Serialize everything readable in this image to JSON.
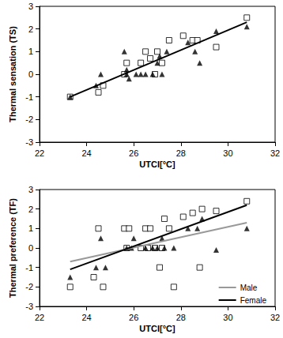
{
  "chart_data": [
    {
      "type": "scatter",
      "title": "",
      "x_label": "UTCI[°C]",
      "y_label": "Thermal sensation (TS)",
      "xlim": [
        22,
        32
      ],
      "xticks": [
        22,
        24,
        26,
        28,
        30,
        32
      ],
      "ylim": [
        -3,
        3
      ],
      "yticks": [
        -3,
        -2,
        -1,
        0,
        1,
        2,
        3
      ],
      "grid": false,
      "series": [
        {
          "type": "scatter",
          "marker": "open_square",
          "color": "#000000",
          "x": [
            23.3,
            24.5,
            24.7,
            25.6,
            25.7,
            26.3,
            26.5,
            26.7,
            26.9,
            27.0,
            27.2,
            27.5,
            28.1,
            28.5,
            28.7,
            29.5,
            30.8
          ],
          "values": [
            -1,
            -0.8,
            -0.5,
            0,
            0.5,
            0.5,
            1,
            0.7,
            0,
            1,
            0.5,
            1.5,
            1.7,
            1.5,
            1.5,
            1.2,
            2.5
          ]
        },
        {
          "type": "scatter",
          "marker": "triangle",
          "color": "#000000",
          "x": [
            23.3,
            24.4,
            24.6,
            25.6,
            25.7,
            25.7,
            25.8,
            26.1,
            26.3,
            26.5,
            26.8,
            27.0,
            27.1,
            27.2,
            27.4,
            28.3,
            28.6,
            28.8,
            29.5,
            30.8
          ],
          "values": [
            -1,
            -0.5,
            0,
            1,
            0,
            0.2,
            -0.2,
            0,
            0,
            0,
            0,
            0.5,
            0.8,
            0,
            1,
            1.4,
            1,
            0.5,
            1.9,
            2.1
          ]
        },
        {
          "type": "line",
          "line_style": "solid",
          "color": "#000000",
          "x": [
            23.3,
            30.8
          ],
          "values": [
            -1,
            2.3
          ]
        }
      ]
    },
    {
      "type": "scatter",
      "title": "",
      "x_label": "UTCI[°C]",
      "y_label": "Thermal preference (TF)",
      "xlim": [
        22,
        32
      ],
      "xticks": [
        22,
        24,
        26,
        28,
        30,
        32
      ],
      "ylim": [
        -3,
        3
      ],
      "yticks": [
        -3,
        -2,
        -1,
        0,
        1,
        2,
        3
      ],
      "grid": false,
      "legend": "lower right",
      "series": [
        {
          "type": "scatter",
          "marker": "open_square",
          "color": "#000000",
          "x": [
            23.3,
            24.3,
            24.5,
            24.7,
            25.6,
            25.7,
            25.8,
            26.3,
            26.5,
            26.6,
            26.7,
            26.9,
            27.1,
            27.2,
            27.3,
            27.5,
            27.7,
            28.1,
            28.5,
            28.8,
            28.9,
            29.5,
            30.8
          ],
          "values": [
            -2,
            -1.5,
            1,
            -2,
            1,
            0,
            1,
            0,
            1,
            0,
            1,
            0,
            -1,
            0,
            1.5,
            1,
            -2,
            1.6,
            1.8,
            -1,
            2,
            1.9,
            2.4
          ]
        },
        {
          "type": "scatter",
          "marker": "triangle",
          "color": "#000000",
          "x": [
            23.3,
            24.4,
            24.6,
            24.8,
            25.7,
            25.9,
            26.0,
            26.5,
            26.8,
            27.0,
            27.2,
            27.3,
            27.7,
            28.3,
            28.7,
            28.9,
            29.5,
            30.8
          ],
          "values": [
            -1.5,
            -1,
            0.5,
            -1,
            0,
            0,
            0.5,
            0,
            0,
            0,
            0.5,
            0,
            0,
            1,
            1,
            1.5,
            -0.1,
            1
          ]
        },
        {
          "type": "line",
          "name": "Male",
          "line_style": "solid",
          "color": "#999999",
          "x": [
            23.3,
            30.8
          ],
          "values": [
            -0.7,
            1.3
          ]
        },
        {
          "type": "line",
          "name": "Female",
          "line_style": "solid",
          "color": "#000000",
          "x": [
            23.3,
            30.8
          ],
          "values": [
            -1.1,
            2.2
          ]
        }
      ]
    }
  ]
}
